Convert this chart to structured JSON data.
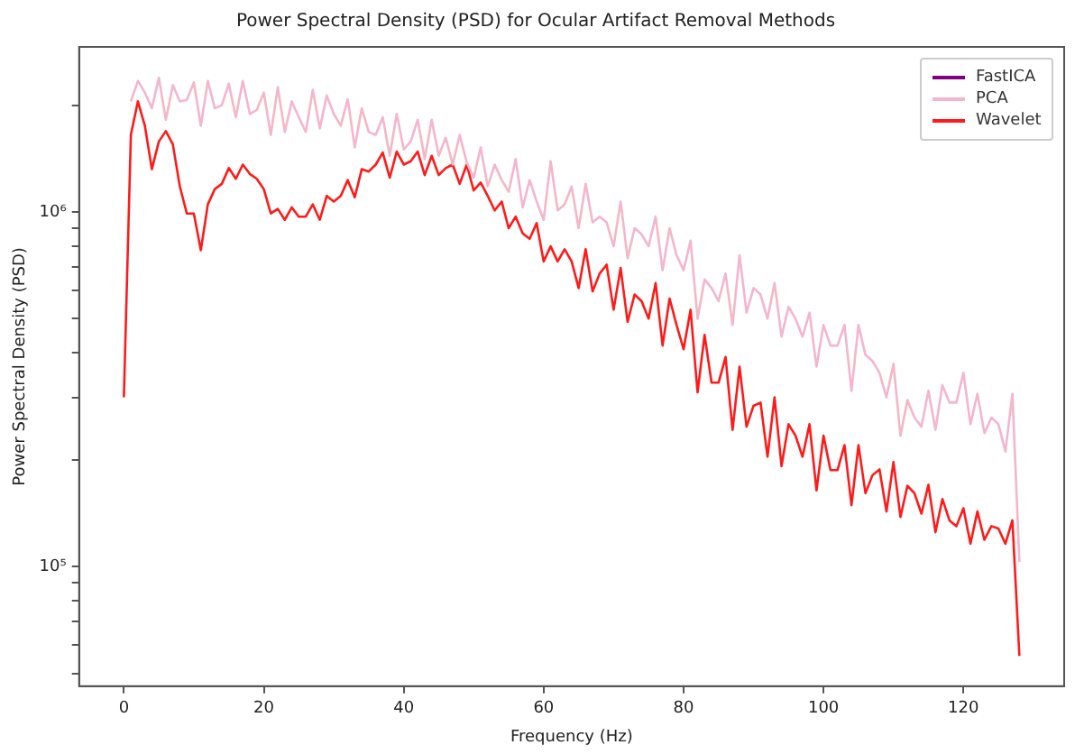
{
  "chart_data": {
    "type": "line",
    "title": "Power Spectral Density (PSD) for Ocular Artifact Removal Methods",
    "xlabel": "Frequency (Hz)",
    "ylabel": "Power Spectral Density (PSD)",
    "x": [
      0,
      1,
      2,
      3,
      4,
      5,
      6,
      7,
      8,
      9,
      10,
      11,
      12,
      13,
      14,
      15,
      16,
      17,
      18,
      19,
      20,
      21,
      22,
      23,
      24,
      25,
      26,
      27,
      28,
      29,
      30,
      31,
      32,
      33,
      34,
      35,
      36,
      37,
      38,
      39,
      40,
      41,
      42,
      43,
      44,
      45,
      46,
      47,
      48,
      49,
      50,
      51,
      52,
      53,
      54,
      55,
      56,
      57,
      58,
      59,
      60,
      61,
      62,
      63,
      64,
      65,
      66,
      67,
      68,
      69,
      70,
      71,
      72,
      73,
      74,
      75,
      76,
      77,
      78,
      79,
      80,
      81,
      82,
      83,
      84,
      85,
      86,
      87,
      88,
      89,
      90,
      91,
      92,
      93,
      94,
      95,
      96,
      97,
      98,
      99,
      100,
      101,
      102,
      103,
      104,
      105,
      106,
      107,
      108,
      109,
      110,
      111,
      112,
      113,
      114,
      115,
      116,
      117,
      118,
      119,
      120,
      121,
      122,
      123,
      124,
      125,
      126,
      127,
      128
    ],
    "series": [
      {
        "name": "FastICA",
        "color": "#800080",
        "values": [
          null,
          null,
          null,
          null,
          null,
          null,
          null,
          null,
          null,
          null,
          null,
          null,
          null,
          null,
          null,
          null,
          null,
          null,
          null,
          null,
          null,
          null,
          null,
          null,
          null,
          null,
          null,
          null,
          null,
          null,
          null,
          null,
          null,
          null,
          null,
          null,
          null,
          null,
          null,
          null,
          null,
          null,
          null,
          null,
          null,
          null,
          null,
          null,
          null,
          null,
          null,
          null,
          null,
          null,
          null,
          null,
          null,
          null,
          null,
          null,
          null,
          null,
          null,
          null,
          null,
          null,
          null,
          null,
          null,
          null,
          null,
          null,
          null,
          null,
          null,
          null,
          null,
          null,
          null,
          null,
          null,
          null,
          null,
          null,
          null,
          null,
          null,
          null,
          null,
          null,
          null,
          null,
          null,
          null,
          null,
          null,
          null,
          null,
          null,
          null,
          null,
          null,
          null,
          null,
          null,
          null,
          null,
          null,
          null,
          null,
          null,
          null,
          null,
          null,
          null,
          null,
          null,
          null,
          null,
          null,
          null,
          null,
          null,
          null,
          null,
          null,
          null,
          null,
          null
        ]
      },
      {
        "name": "PCA",
        "color": "#f4b6c9",
        "values": [
          null,
          2050000,
          2340000,
          2170000,
          1960000,
          2390000,
          1820000,
          2280000,
          2050000,
          2070000,
          2320000,
          1750000,
          2340000,
          1960000,
          2000000,
          2300000,
          1850000,
          2340000,
          1890000,
          1940000,
          2170000,
          1650000,
          2250000,
          1680000,
          2050000,
          1850000,
          1680000,
          2210000,
          1720000,
          2130000,
          1890000,
          1750000,
          2080000,
          1520000,
          1960000,
          1680000,
          1650000,
          1850000,
          1440000,
          1890000,
          1500000,
          1580000,
          1820000,
          1410000,
          1820000,
          1440000,
          1620000,
          1360000,
          1650000,
          1380000,
          1250000,
          1520000,
          1180000,
          1360000,
          1230000,
          1140000,
          1410000,
          1030000,
          1230000,
          1070000,
          950000,
          1390000,
          1010000,
          1050000,
          1180000,
          900000,
          1200000,
          935000,
          970000,
          935000,
          800000,
          1070000,
          740000,
          900000,
          865000,
          800000,
          970000,
          685000,
          900000,
          755000,
          685000,
          830000,
          500000,
          645000,
          610000,
          560000,
          670000,
          480000,
          755000,
          520000,
          610000,
          585000,
          500000,
          630000,
          445000,
          540000,
          500000,
          445000,
          520000,
          366000,
          480000,
          420000,
          420000,
          480000,
          313000,
          480000,
          395000,
          380000,
          352000,
          300000,
          373000,
          234000,
          295000,
          263000,
          248000,
          313000,
          243000,
          325000,
          290000,
          290000,
          352000,
          252000,
          307000,
          238000,
          263000,
          252000,
          211000,
          307000,
          103000
        ]
      },
      {
        "name": "Wavelet",
        "color": "#ff1a1a",
        "values": [
          300000,
          1650000,
          2050000,
          1750000,
          1320000,
          1580000,
          1690000,
          1550000,
          1180000,
          990000,
          990000,
          780000,
          1050000,
          1160000,
          1200000,
          1330000,
          1240000,
          1360000,
          1280000,
          1240000,
          1160000,
          990000,
          1020000,
          950000,
          1030000,
          970000,
          970000,
          1050000,
          950000,
          1110000,
          1070000,
          1110000,
          1230000,
          1100000,
          1320000,
          1300000,
          1360000,
          1470000,
          1250000,
          1480000,
          1360000,
          1390000,
          1480000,
          1270000,
          1440000,
          1270000,
          1330000,
          1360000,
          1200000,
          1360000,
          1150000,
          1210000,
          1110000,
          1010000,
          1070000,
          900000,
          970000,
          870000,
          840000,
          930000,
          725000,
          800000,
          725000,
          785000,
          725000,
          610000,
          785000,
          597000,
          670000,
          710000,
          530000,
          695000,
          490000,
          585000,
          560000,
          500000,
          630000,
          420000,
          570000,
          480000,
          410000,
          530000,
          310000,
          450000,
          330000,
          330000,
          390000,
          243000,
          366000,
          248000,
          284000,
          290000,
          204000,
          300000,
          192000,
          252000,
          234000,
          204000,
          252000,
          164000,
          234000,
          187000,
          187000,
          220000,
          149000,
          220000,
          161000,
          181000,
          188000,
          143000,
          197000,
          138000,
          169000,
          161000,
          141000,
          170000,
          125000,
          155000,
          135000,
          130000,
          146000,
          116000,
          143000,
          119000,
          130000,
          128000,
          116000,
          135000,
          56000
        ]
      }
    ],
    "xlim": [
      -6.4,
      134.4
    ],
    "xticks": [
      0,
      20,
      40,
      60,
      80,
      100,
      120
    ],
    "log": "y",
    "ylim": [
      46000,
      2920000
    ],
    "yticks": [
      {
        "value": 50000,
        "label": null
      },
      {
        "value": 60000,
        "label": null
      },
      {
        "value": 70000,
        "label": null
      },
      {
        "value": 80000,
        "label": null
      },
      {
        "value": 90000,
        "label": null
      },
      {
        "value": 100000,
        "label": "10⁵"
      },
      {
        "value": 200000,
        "label": null
      },
      {
        "value": 300000,
        "label": null
      },
      {
        "value": 400000,
        "label": null
      },
      {
        "value": 500000,
        "label": null
      },
      {
        "value": 600000,
        "label": null
      },
      {
        "value": 700000,
        "label": null
      },
      {
        "value": 800000,
        "label": null
      },
      {
        "value": 900000,
        "label": null
      },
      {
        "value": 1000000,
        "label": "10⁶"
      },
      {
        "value": 2000000,
        "label": null
      }
    ],
    "grid": false,
    "legend": "top right",
    "marker": "none",
    "line_style": "solid"
  }
}
